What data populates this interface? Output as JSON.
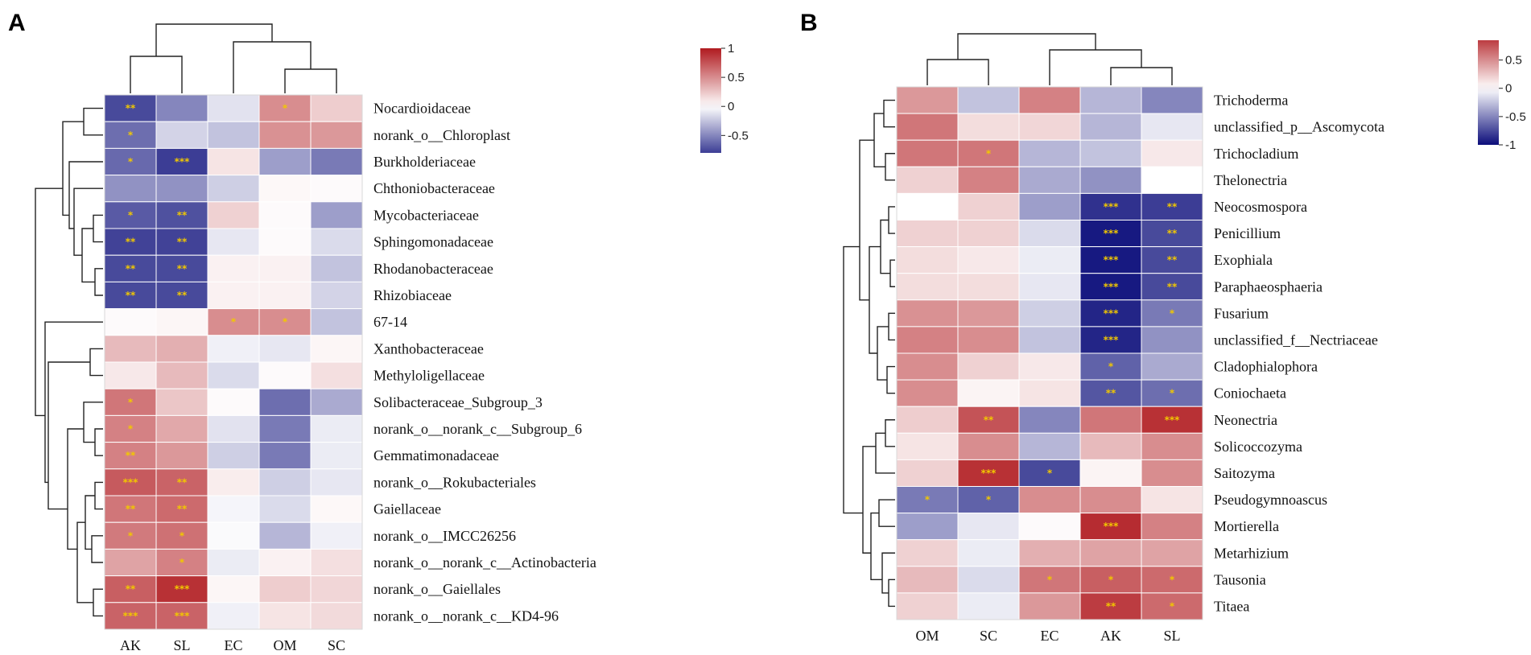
{
  "chart_data": [
    {
      "type": "heatmap",
      "panel": "A",
      "columns": [
        "AK",
        "SL",
        "EC",
        "OM",
        "SC"
      ],
      "rows": [
        "Nocardioidaceae",
        "norank_o__Chloroplast",
        "Burkholderiaceae",
        "Chthoniobacteraceae",
        "Mycobacteriaceae",
        "Sphingomonadaceae",
        "Rhodanobacteraceae",
        "Rhizobiaceae",
        "67-14",
        "Xanthobacteraceae",
        "Methyloligellaceae",
        "Solibacteraceae_Subgroup_3",
        "norank_o__norank_c__Subgroup_6",
        "Gemmatimonadaceae",
        "norank_o__Rokubacteriales",
        "Gaiellaceae",
        "norank_o__IMCC26256",
        "norank_o__norank_c__Actinobacteria",
        "norank_o__Gaiellales",
        "norank_o__norank_c__KD4-96"
      ],
      "values": [
        [
          -0.75,
          -0.5,
          -0.12,
          0.5,
          0.22
        ],
        [
          -0.6,
          -0.18,
          -0.25,
          0.48,
          0.45
        ],
        [
          -0.62,
          -0.8,
          0.12,
          -0.4,
          -0.55
        ],
        [
          -0.45,
          -0.45,
          -0.2,
          0.03,
          0.02
        ],
        [
          -0.68,
          -0.72,
          0.2,
          0.02,
          -0.4
        ],
        [
          -0.78,
          -0.78,
          -0.1,
          0.02,
          -0.15
        ],
        [
          -0.75,
          -0.75,
          0.06,
          0.06,
          -0.25
        ],
        [
          -0.75,
          -0.75,
          0.06,
          0.06,
          -0.18
        ],
        [
          0.02,
          0.04,
          0.5,
          0.5,
          -0.25
        ],
        [
          0.3,
          0.35,
          -0.06,
          -0.1,
          0.04
        ],
        [
          0.1,
          0.3,
          -0.15,
          0.02,
          0.14
        ],
        [
          0.6,
          0.25,
          0.02,
          -0.6,
          -0.35
        ],
        [
          0.55,
          0.38,
          -0.12,
          -0.55,
          -0.08
        ],
        [
          0.55,
          0.45,
          -0.2,
          -0.55,
          -0.08
        ],
        [
          0.72,
          0.68,
          0.08,
          -0.2,
          -0.1
        ],
        [
          0.6,
          0.65,
          -0.04,
          -0.15,
          0.03
        ],
        [
          0.58,
          0.62,
          -0.02,
          -0.3,
          -0.06
        ],
        [
          0.4,
          0.55,
          -0.08,
          0.06,
          0.14
        ],
        [
          0.7,
          0.9,
          0.04,
          0.22,
          0.18
        ],
        [
          0.68,
          0.68,
          -0.06,
          0.12,
          0.16
        ]
      ],
      "significance": [
        [
          "**",
          "",
          "",
          "*",
          ""
        ],
        [
          "*",
          "",
          "",
          "",
          ""
        ],
        [
          "*",
          "***",
          "",
          "",
          ""
        ],
        [
          "",
          "",
          "",
          "",
          ""
        ],
        [
          "*",
          "**",
          "",
          "",
          ""
        ],
        [
          "**",
          "**",
          "",
          "",
          ""
        ],
        [
          "**",
          "**",
          "",
          "",
          ""
        ],
        [
          "**",
          "**",
          "",
          "",
          ""
        ],
        [
          "",
          "",
          "*",
          "*",
          ""
        ],
        [
          "",
          "",
          "",
          "",
          ""
        ],
        [
          "",
          "",
          "",
          "",
          ""
        ],
        [
          "*",
          "",
          "",
          "",
          ""
        ],
        [
          "*",
          "",
          "",
          "",
          ""
        ],
        [
          "**",
          "",
          "",
          "",
          ""
        ],
        [
          "***",
          "**",
          "",
          "",
          ""
        ],
        [
          "**",
          "**",
          "",
          "",
          ""
        ],
        [
          "*",
          "*",
          "",
          "",
          ""
        ],
        [
          "",
          "*",
          "",
          "",
          ""
        ],
        [
          "**",
          "***",
          "",
          "",
          ""
        ],
        [
          "***",
          "***",
          "",
          "",
          ""
        ]
      ],
      "colorbar": {
        "min": -0.8,
        "max": 1,
        "ticks": [
          1,
          0.5,
          0,
          -0.5
        ],
        "tick_labels": [
          "1",
          "0.5",
          "0",
          "-0.5"
        ]
      },
      "colors": {
        "negative": "#0b0d7a",
        "neutral": "#ffffff",
        "positive": "#b01a1f"
      },
      "dendrogram": "rows and columns hierarchically clustered"
    },
    {
      "type": "heatmap",
      "panel": "B",
      "columns": [
        "OM",
        "SC",
        "EC",
        "AK",
        "SL"
      ],
      "rows": [
        "Trichoderma",
        "unclassified_p__Ascomycota",
        "Trichocladium",
        "Thelonectria",
        "Neocosmospora",
        "Penicillium",
        "Exophiala",
        "Paraphaeosphaeria",
        "Fusarium",
        "unclassified_f__Nectriaceae",
        "Cladophialophora",
        "Coniochaeta",
        "Neonectria",
        "Solicoccozyma",
        "Saitozyma",
        "Pseudogymnoascus",
        "Mortierella",
        "Metarhizium",
        "Tausonia",
        "Titaea"
      ],
      "values": [
        [
          0.45,
          -0.25,
          0.55,
          -0.3,
          -0.5
        ],
        [
          0.6,
          0.15,
          0.18,
          -0.3,
          -0.1
        ],
        [
          0.6,
          0.6,
          -0.3,
          -0.25,
          0.1
        ],
        [
          0.2,
          0.55,
          -0.35,
          -0.45,
          0.0
        ],
        [
          0.0,
          0.2,
          -0.4,
          -0.85,
          -0.8
        ],
        [
          0.2,
          0.2,
          -0.15,
          -0.95,
          -0.75
        ],
        [
          0.15,
          0.1,
          -0.08,
          -0.95,
          -0.75
        ],
        [
          0.15,
          0.15,
          -0.1,
          -0.95,
          -0.75
        ],
        [
          0.48,
          0.45,
          -0.2,
          -0.9,
          -0.55
        ],
        [
          0.55,
          0.5,
          -0.25,
          -0.9,
          -0.45
        ],
        [
          0.5,
          0.2,
          0.1,
          -0.65,
          -0.35
        ],
        [
          0.5,
          0.05,
          0.12,
          -0.7,
          -0.6
        ],
        [
          0.22,
          0.75,
          -0.5,
          0.6,
          0.9
        ],
        [
          0.12,
          0.5,
          -0.3,
          0.3,
          0.5
        ],
        [
          0.2,
          0.9,
          -0.75,
          0.05,
          0.5
        ],
        [
          -0.55,
          -0.65,
          0.5,
          0.5,
          0.12
        ],
        [
          -0.4,
          -0.1,
          0.02,
          0.92,
          0.55
        ],
        [
          0.2,
          -0.08,
          0.35,
          0.4,
          0.4
        ],
        [
          0.3,
          -0.15,
          0.6,
          0.7,
          0.65
        ],
        [
          0.2,
          -0.08,
          0.45,
          0.85,
          0.65
        ]
      ],
      "significance": [
        [
          "",
          "",
          "",
          "",
          ""
        ],
        [
          "",
          "",
          "",
          "",
          ""
        ],
        [
          "",
          "*",
          "",
          "",
          ""
        ],
        [
          "",
          "",
          "",
          "",
          ""
        ],
        [
          "",
          "",
          "",
          "***",
          "**"
        ],
        [
          "",
          "",
          "",
          "***",
          "**"
        ],
        [
          "",
          "",
          "",
          "***",
          "**"
        ],
        [
          "",
          "",
          "",
          "***",
          "**"
        ],
        [
          "",
          "",
          "",
          "***",
          "*"
        ],
        [
          "",
          "",
          "",
          "***",
          ""
        ],
        [
          "",
          "",
          "",
          "*",
          ""
        ],
        [
          "",
          "",
          "",
          "**",
          "*"
        ],
        [
          "",
          "**",
          "",
          "",
          "***"
        ],
        [
          "",
          "",
          "",
          "",
          ""
        ],
        [
          "",
          "***",
          "*",
          "",
          ""
        ],
        [
          "*",
          "*",
          "",
          "",
          ""
        ],
        [
          "",
          "",
          "",
          "***",
          ""
        ],
        [
          "",
          "",
          "",
          "",
          ""
        ],
        [
          "",
          "",
          "*",
          "*",
          "*"
        ],
        [
          "",
          "",
          "",
          "**",
          "*"
        ]
      ],
      "colorbar": {
        "min": -1,
        "max": 0.85,
        "ticks": [
          0.5,
          0,
          -0.5,
          -1
        ],
        "tick_labels": [
          "0.5",
          "0",
          "-0.5",
          "-1"
        ]
      },
      "colors": {
        "negative": "#0b0d7a",
        "neutral": "#ffffff",
        "positive": "#b01a1f"
      },
      "dendrogram": "rows and columns hierarchically clustered"
    }
  ]
}
